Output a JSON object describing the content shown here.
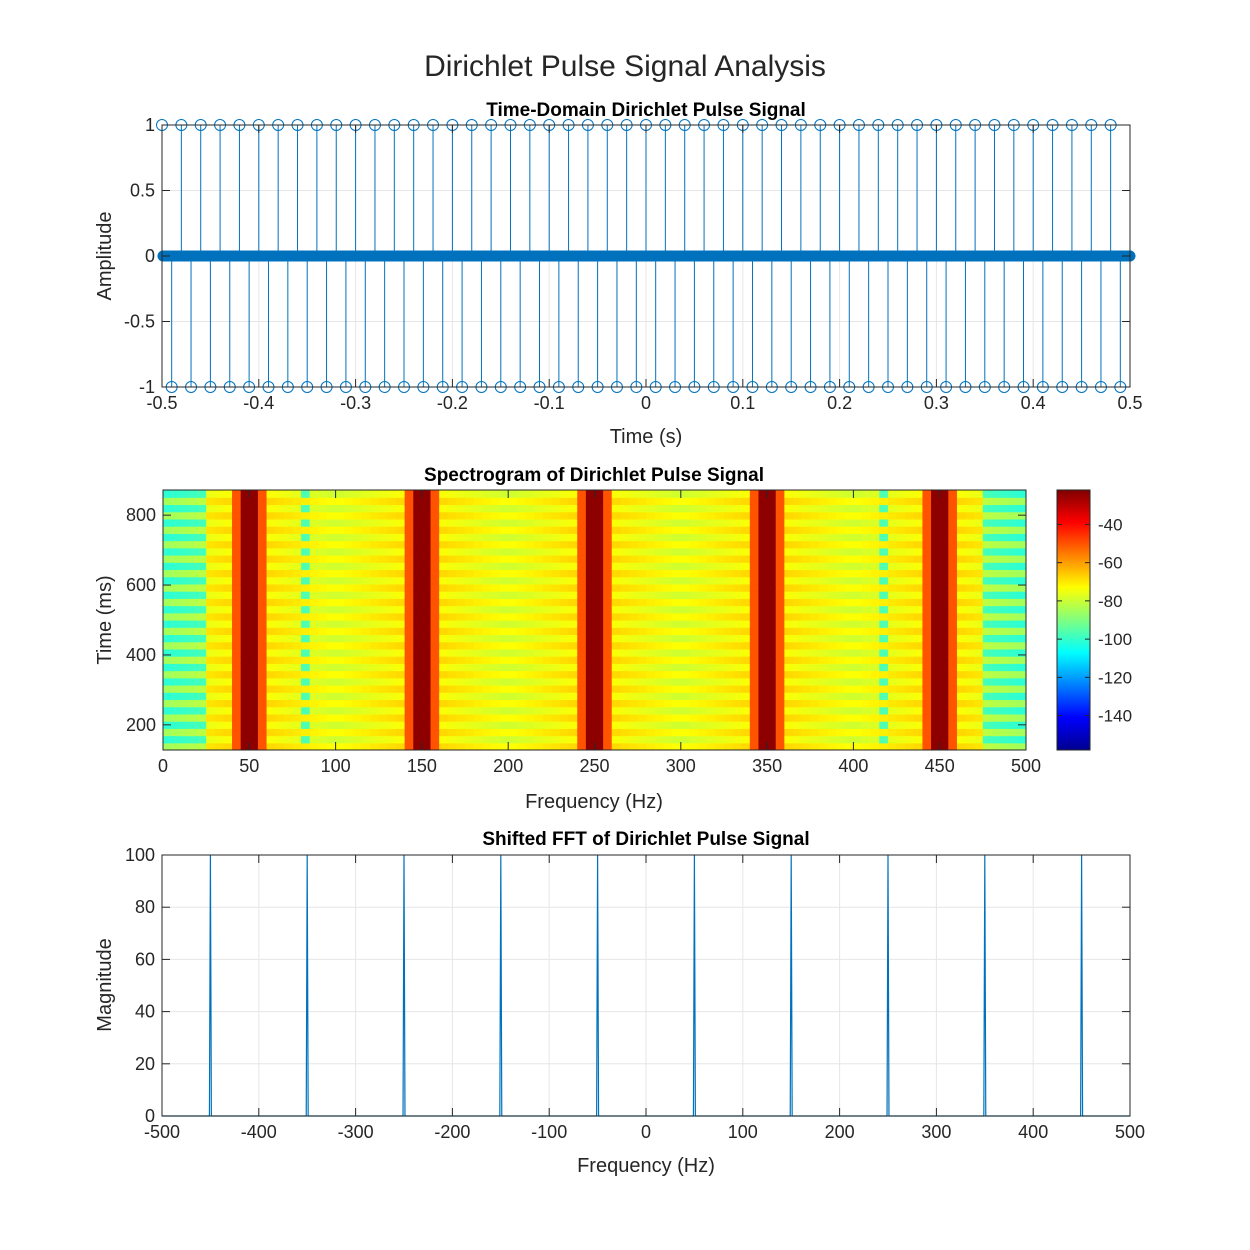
{
  "figure": {
    "title": "Dirichlet Pulse Signal Analysis"
  },
  "colors": {
    "line": "#0072BD",
    "grid": "#e6e6e6",
    "axis": "#262626"
  },
  "chart_data": [
    {
      "type": "stem",
      "title": "Time-Domain Dirichlet Pulse Signal",
      "xlabel": "Time (s)",
      "ylabel": "Amplitude",
      "xlim": [
        -0.5,
        0.5
      ],
      "ylim": [
        -1,
        1
      ],
      "xticks": [
        -0.5,
        -0.4,
        -0.3,
        -0.2,
        -0.1,
        0,
        0.1,
        0.2,
        0.3,
        0.4,
        0.5
      ],
      "xtick_labels": [
        "-0.5",
        "-0.4",
        "-0.3",
        "-0.2",
        "-0.1",
        "0",
        "0.1",
        "0.2",
        "0.3",
        "0.4",
        "0.5"
      ],
      "yticks": [
        -1,
        -0.5,
        0,
        0.5,
        1
      ],
      "ytick_labels": [
        "-1",
        "-0.5",
        "0",
        "0.5",
        "1"
      ],
      "grid": true,
      "sample_interval_s": 0.001,
      "series": [
        {
          "values_desc": "x(t) = +1 at t = -0.5 + k*0.02, -1 at t = -0.49 + k*0.02, 0 elsewhere",
          "positive_pulse_times": [
            -0.5,
            -0.48,
            -0.46,
            -0.44,
            -0.42,
            -0.4,
            -0.38,
            -0.36,
            -0.34,
            -0.32,
            -0.3,
            -0.28,
            -0.26,
            -0.24,
            -0.22,
            -0.2,
            -0.18,
            -0.16,
            -0.14,
            -0.12,
            -0.1,
            -0.08,
            -0.06,
            -0.04,
            -0.02,
            0,
            0.02,
            0.04,
            0.06,
            0.08,
            0.1,
            0.12,
            0.14,
            0.16,
            0.18,
            0.2,
            0.22,
            0.24,
            0.26,
            0.28,
            0.3,
            0.32,
            0.34,
            0.36,
            0.38,
            0.4,
            0.42,
            0.44,
            0.46,
            0.48
          ],
          "negative_pulse_times": [
            -0.49,
            -0.47,
            -0.45,
            -0.43,
            -0.41,
            -0.39,
            -0.37,
            -0.35,
            -0.33,
            -0.31,
            -0.29,
            -0.27,
            -0.25,
            -0.23,
            -0.21,
            -0.19,
            -0.17,
            -0.15,
            -0.13,
            -0.11,
            -0.09,
            -0.07,
            -0.05,
            -0.03,
            -0.01,
            0.01,
            0.03,
            0.05,
            0.07,
            0.09,
            0.11,
            0.13,
            0.15,
            0.17,
            0.19,
            0.21,
            0.23,
            0.25,
            0.27,
            0.29,
            0.31,
            0.33,
            0.35,
            0.37,
            0.39,
            0.41,
            0.43,
            0.45,
            0.47,
            0.49
          ]
        }
      ]
    },
    {
      "type": "heatmap",
      "title": "Spectrogram of Dirichlet Pulse Signal",
      "xlabel": "Frequency (Hz)",
      "ylabel": "Time (ms)",
      "xlim": [
        0,
        500
      ],
      "ylim": [
        128,
        872
      ],
      "xticks": [
        0,
        50,
        100,
        150,
        200,
        250,
        300,
        350,
        400,
        450,
        500
      ],
      "xtick_labels": [
        "0",
        "50",
        "100",
        "150",
        "200",
        "250",
        "300",
        "350",
        "400",
        "450",
        "500"
      ],
      "yticks": [
        200,
        400,
        600,
        800
      ],
      "ytick_labels": [
        "200",
        "400",
        "600",
        "800"
      ],
      "colormap": "jet",
      "clim": [
        -158,
        -22
      ],
      "colorbar_ticks": [
        -40,
        -60,
        -80,
        -100,
        -120,
        -140
      ],
      "colorbar_tick_labels": [
        "-40",
        "-60",
        "-80",
        "-100",
        "-120",
        "-140"
      ],
      "peak_frequencies_hz": [
        50,
        150,
        250,
        350,
        450
      ],
      "peak_level_db": -25,
      "background_level_db": -70
    },
    {
      "type": "line",
      "title": "Shifted FFT of Dirichlet Pulse Signal",
      "xlabel": "Frequency (Hz)",
      "ylabel": "Magnitude",
      "xlim": [
        -500,
        500
      ],
      "ylim": [
        0,
        100
      ],
      "xticks": [
        -500,
        -400,
        -300,
        -200,
        -100,
        0,
        100,
        200,
        300,
        400,
        500
      ],
      "xtick_labels": [
        "-500",
        "-400",
        "-300",
        "-200",
        "-100",
        "0",
        "100",
        "200",
        "300",
        "400",
        "500"
      ],
      "yticks": [
        0,
        20,
        40,
        60,
        80,
        100
      ],
      "ytick_labels": [
        "0",
        "20",
        "40",
        "60",
        "80",
        "100"
      ],
      "grid": true,
      "series": [
        {
          "x": [
            -450,
            -350,
            -250,
            -150,
            -50,
            50,
            150,
            250,
            350,
            450
          ],
          "y": [
            100,
            100,
            100,
            100,
            100,
            100,
            100,
            100,
            100,
            100
          ],
          "baseline": 0
        }
      ]
    }
  ]
}
